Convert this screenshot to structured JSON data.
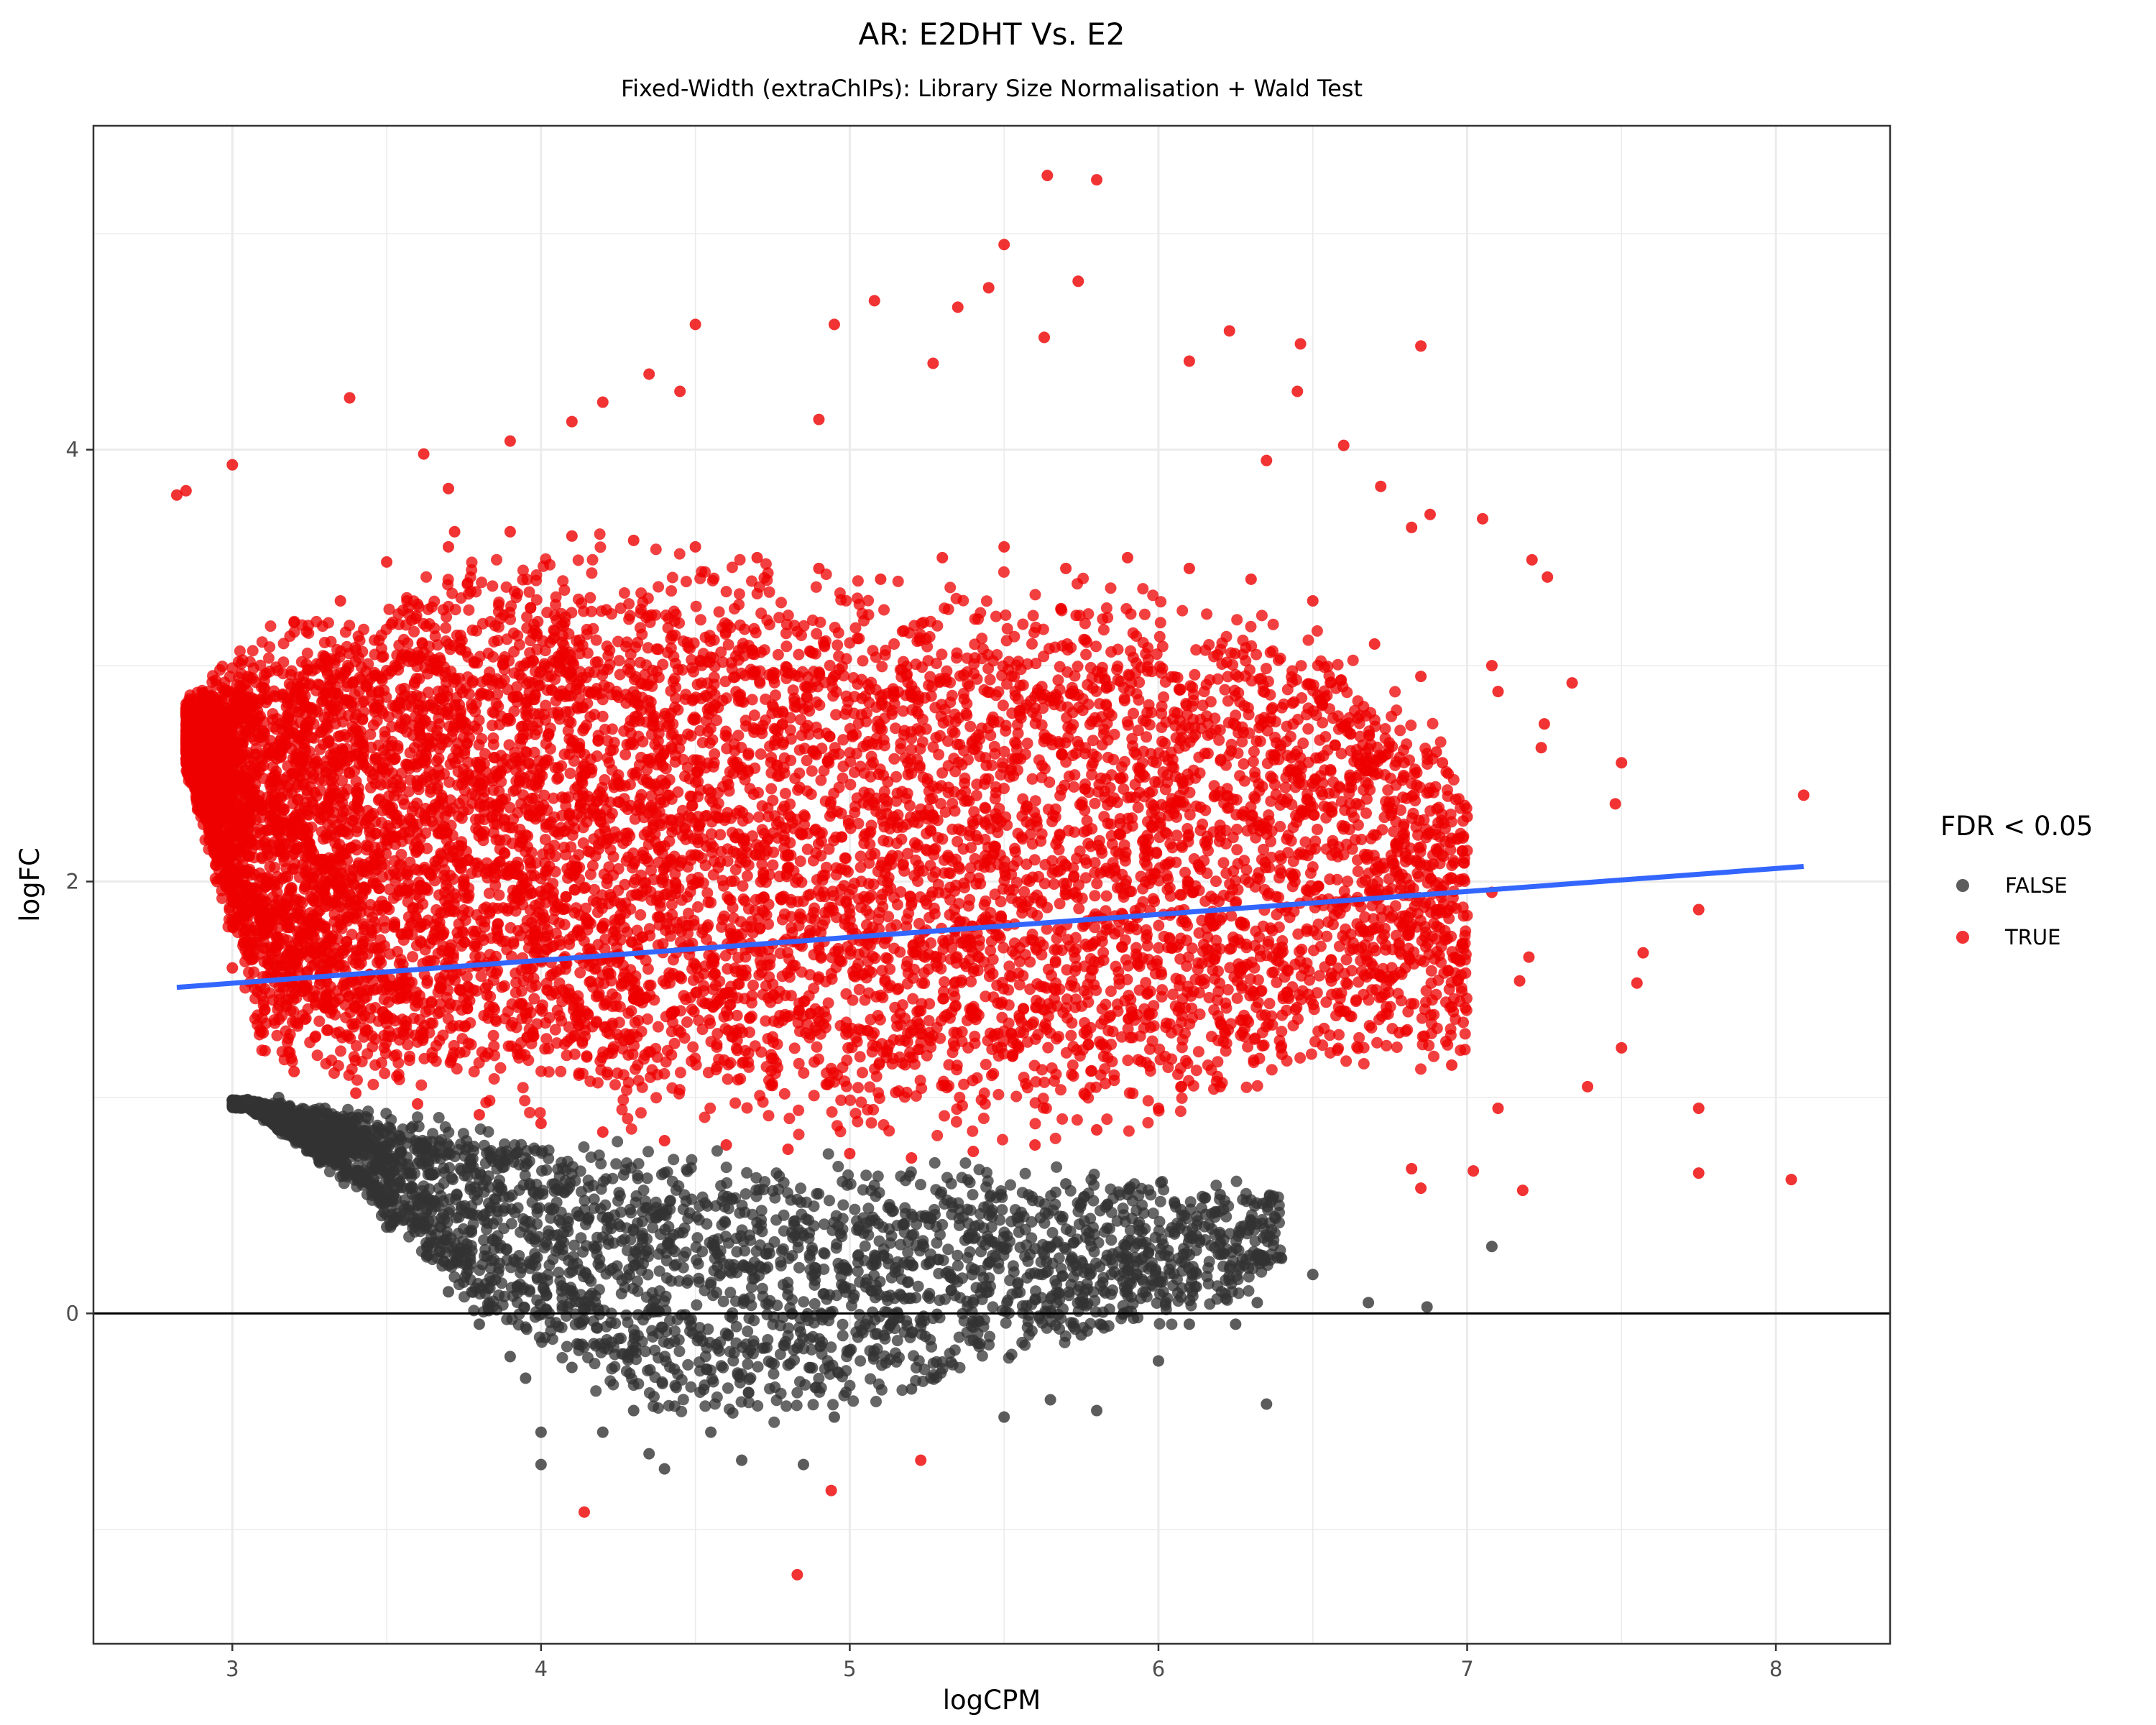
{
  "chart_data": {
    "type": "scatter",
    "title": "AR: E2DHT Vs. E2",
    "subtitle": "Fixed-Width (extraChIPs): Library Size Normalisation + Wald Test",
    "xlabel": "logCPM",
    "ylabel": "logFC",
    "xlim": [
      2.55,
      8.37
    ],
    "ylim": [
      -1.53,
      5.5
    ],
    "x_ticks": [
      3,
      4,
      5,
      6,
      7,
      8
    ],
    "y_ticks": [
      0,
      2,
      4
    ],
    "x_tick_labels": [
      "3",
      "4",
      "5",
      "6",
      "7",
      "8"
    ],
    "y_tick_labels": [
      "0",
      "2",
      "4"
    ],
    "grid": true,
    "hline": 0,
    "legend": {
      "title": "FDR < 0.05",
      "position": "right",
      "entries": [
        {
          "label": "FALSE",
          "color": "#333333"
        },
        {
          "label": "TRUE",
          "color": "#ee0000"
        }
      ]
    },
    "series": [
      {
        "name": "FALSE",
        "color": "#333333",
        "points": [
          [
            4.0,
            -0.55
          ],
          [
            4.0,
            -0.7
          ],
          [
            4.2,
            -0.55
          ],
          [
            4.35,
            -0.65
          ],
          [
            4.4,
            -0.72
          ],
          [
            4.65,
            -0.68
          ],
          [
            4.85,
            -0.7
          ],
          [
            4.95,
            -0.48
          ],
          [
            5.2,
            -0.35
          ],
          [
            5.5,
            -0.48
          ],
          [
            5.65,
            -0.4
          ],
          [
            5.8,
            -0.45
          ],
          [
            6.0,
            -0.22
          ],
          [
            6.1,
            -0.05
          ],
          [
            6.25,
            -0.05
          ],
          [
            6.35,
            -0.42
          ],
          [
            6.5,
            0.18
          ],
          [
            6.68,
            0.05
          ],
          [
            6.87,
            0.03
          ],
          [
            7.08,
            0.31
          ],
          [
            6.2,
            0.55
          ],
          [
            6.34,
            0.35
          ],
          [
            5.9,
            0.2
          ],
          [
            5.7,
            0.6
          ],
          [
            5.9,
            0.55
          ],
          [
            6.1,
            0.35
          ],
          [
            6.32,
            0.05
          ],
          [
            5.6,
            0.3
          ],
          [
            5.45,
            0.1
          ],
          [
            5.75,
            -0.1
          ],
          [
            3.05,
            0.99
          ],
          [
            3.15,
            1.0
          ],
          [
            3.3,
            0.95
          ],
          [
            3.6,
            0.5
          ],
          [
            3.5,
            0.4
          ],
          [
            3.7,
            0.1
          ],
          [
            3.8,
            -0.05
          ],
          [
            3.9,
            -0.2
          ],
          [
            3.95,
            -0.3
          ],
          [
            4.1,
            -0.25
          ],
          [
            4.3,
            -0.45
          ],
          [
            4.55,
            -0.55
          ]
        ]
      },
      {
        "name": "TRUE",
        "color": "#ee0000",
        "points": [
          [
            2.82,
            3.79
          ],
          [
            2.85,
            3.81
          ],
          [
            3.0,
            3.93
          ],
          [
            3.38,
            4.24
          ],
          [
            3.62,
            3.98
          ],
          [
            3.7,
            3.82
          ],
          [
            3.72,
            3.62
          ],
          [
            3.9,
            4.04
          ],
          [
            4.1,
            4.13
          ],
          [
            4.2,
            4.22
          ],
          [
            4.35,
            4.35
          ],
          [
            4.45,
            4.27
          ],
          [
            4.5,
            4.58
          ],
          [
            4.9,
            4.14
          ],
          [
            4.95,
            4.58
          ],
          [
            5.08,
            4.69
          ],
          [
            5.27,
            4.4
          ],
          [
            5.35,
            4.66
          ],
          [
            5.45,
            4.75
          ],
          [
            5.5,
            4.95
          ],
          [
            5.64,
            5.27
          ],
          [
            5.8,
            5.25
          ],
          [
            5.74,
            4.78
          ],
          [
            5.63,
            4.52
          ],
          [
            6.1,
            4.41
          ],
          [
            6.23,
            4.55
          ],
          [
            6.46,
            4.49
          ],
          [
            6.85,
            4.48
          ],
          [
            6.6,
            4.02
          ],
          [
            6.45,
            4.27
          ],
          [
            6.35,
            3.95
          ],
          [
            6.72,
            3.83
          ],
          [
            6.82,
            3.64
          ],
          [
            6.88,
            3.7
          ],
          [
            7.05,
            3.68
          ],
          [
            7.21,
            3.49
          ],
          [
            7.26,
            3.41
          ],
          [
            7.34,
            2.92
          ],
          [
            7.25,
            2.73
          ],
          [
            7.24,
            2.62
          ],
          [
            7.5,
            2.55
          ],
          [
            7.48,
            2.36
          ],
          [
            8.09,
            2.4
          ],
          [
            7.57,
            1.67
          ],
          [
            7.55,
            1.53
          ],
          [
            7.75,
            1.87
          ],
          [
            7.5,
            1.23
          ],
          [
            7.39,
            1.05
          ],
          [
            7.75,
            0.95
          ],
          [
            7.75,
            0.65
          ],
          [
            8.05,
            0.62
          ],
          [
            7.18,
            0.57
          ],
          [
            7.02,
            0.66
          ],
          [
            6.82,
            0.67
          ],
          [
            6.85,
            0.58
          ],
          [
            5.23,
            -0.68
          ],
          [
            4.94,
            -0.82
          ],
          [
            4.14,
            -0.92
          ],
          [
            4.83,
            -1.21
          ],
          [
            7.08,
            3.0
          ],
          [
            7.1,
            2.88
          ],
          [
            7.0,
            2.3
          ],
          [
            7.17,
            1.54
          ],
          [
            7.2,
            1.65
          ],
          [
            7.08,
            1.95
          ],
          [
            6.92,
            2.55
          ],
          [
            6.95,
            1.42
          ],
          [
            7.1,
            0.95
          ],
          [
            6.95,
            1.15
          ],
          [
            6.78,
            1.3
          ],
          [
            6.9,
            2.15
          ],
          [
            3.05,
            2.95
          ],
          [
            3.2,
            3.2
          ],
          [
            3.35,
            3.3
          ],
          [
            3.5,
            3.48
          ],
          [
            3.7,
            3.55
          ],
          [
            3.9,
            3.62
          ],
          [
            4.1,
            3.6
          ],
          [
            4.3,
            3.58
          ],
          [
            4.5,
            3.55
          ],
          [
            4.7,
            3.5
          ],
          [
            4.9,
            3.45
          ],
          [
            5.1,
            3.4
          ],
          [
            5.3,
            3.5
          ],
          [
            5.5,
            3.55
          ],
          [
            5.7,
            3.45
          ],
          [
            5.9,
            3.5
          ],
          [
            6.1,
            3.45
          ],
          [
            6.3,
            3.4
          ],
          [
            6.5,
            3.3
          ],
          [
            6.7,
            3.1
          ],
          [
            6.85,
            2.95
          ],
          [
            6.9,
            2.6
          ],
          [
            6.95,
            2.2
          ],
          [
            6.9,
            1.85
          ],
          [
            6.8,
            1.6
          ],
          [
            6.6,
            1.4
          ],
          [
            6.4,
            1.2
          ],
          [
            6.2,
            1.05
          ],
          [
            6.0,
            0.95
          ],
          [
            5.8,
            0.85
          ],
          [
            5.6,
            0.78
          ],
          [
            5.4,
            0.75
          ],
          [
            5.2,
            0.72
          ],
          [
            5.0,
            0.74
          ],
          [
            4.8,
            0.76
          ],
          [
            4.6,
            0.78
          ],
          [
            4.4,
            0.8
          ],
          [
            4.2,
            0.84
          ],
          [
            4.0,
            0.88
          ],
          [
            3.8,
            0.92
          ],
          [
            3.6,
            0.97
          ],
          [
            3.4,
            1.02
          ],
          [
            3.2,
            1.12
          ],
          [
            3.1,
            1.3
          ],
          [
            3.0,
            1.6
          ],
          [
            2.95,
            2.0
          ],
          [
            2.9,
            2.4
          ],
          [
            2.88,
            2.7
          ]
        ]
      }
    ],
    "false_cloud": {
      "x_min": 3.0,
      "x_max": 6.4,
      "band_upper": [
        [
          3.05,
          0.99
        ],
        [
          3.4,
          0.95
        ],
        [
          3.8,
          0.9
        ],
        [
          4.2,
          0.84
        ],
        [
          4.6,
          0.78
        ],
        [
          5.0,
          0.74
        ],
        [
          5.4,
          0.72
        ],
        [
          5.8,
          0.68
        ],
        [
          6.2,
          0.62
        ],
        [
          6.4,
          0.6
        ]
      ],
      "band_lower": [
        [
          3.05,
          0.95
        ],
        [
          3.4,
          0.55
        ],
        [
          3.8,
          -0.05
        ],
        [
          4.2,
          -0.4
        ],
        [
          4.6,
          -0.55
        ],
        [
          5.0,
          -0.5
        ],
        [
          5.4,
          -0.3
        ],
        [
          5.8,
          -0.15
        ],
        [
          6.2,
          0.0
        ],
        [
          6.4,
          0.2
        ]
      ],
      "count": 3200
    },
    "true_cloud": {
      "x_min": 2.85,
      "x_max": 7.0,
      "band_upper": [
        [
          2.85,
          2.85
        ],
        [
          3.1,
          3.2
        ],
        [
          3.5,
          3.45
        ],
        [
          4.0,
          3.62
        ],
        [
          4.5,
          3.6
        ],
        [
          5.0,
          3.5
        ],
        [
          5.5,
          3.45
        ],
        [
          6.0,
          3.4
        ],
        [
          6.5,
          3.25
        ],
        [
          7.0,
          2.6
        ]
      ],
      "band_lower": [
        [
          2.85,
          2.5
        ],
        [
          3.1,
          1.15
        ],
        [
          3.5,
          0.98
        ],
        [
          4.0,
          0.88
        ],
        [
          4.5,
          0.8
        ],
        [
          5.0,
          0.74
        ],
        [
          5.5,
          0.72
        ],
        [
          6.0,
          0.85
        ],
        [
          6.5,
          1.05
        ],
        [
          7.0,
          1.1
        ]
      ],
      "count": 9000
    },
    "trend_line": {
      "color": "#3366ff",
      "points": [
        [
          2.82,
          1.51
        ],
        [
          8.09,
          2.07
        ]
      ]
    }
  }
}
